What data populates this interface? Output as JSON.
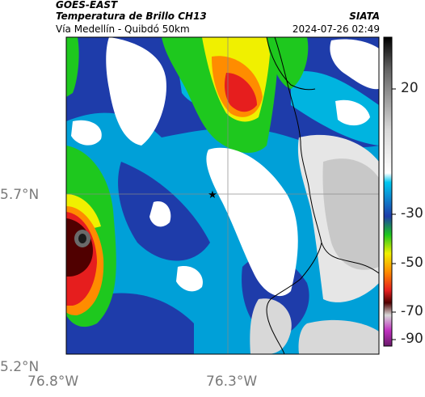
{
  "header": {
    "satellite": "GOES-EAST",
    "product": "Temperatura de Brillo CH13",
    "region": "Vía Medellín - Quibdó 50km",
    "organization": "SIATA",
    "timestamp": "2024-07-26 02:49"
  },
  "axes": {
    "latitude_labels": [
      "5.7°N",
      "5.2°N"
    ],
    "longitude_labels": [
      "76.8°W",
      "76.3°W"
    ]
  },
  "colorbar": {
    "tick_labels": [
      "20",
      "-30",
      "-50",
      "-70",
      "-90"
    ]
  },
  "marker": {
    "symbol": "★",
    "description_color": "#000000"
  },
  "colors": {
    "warm_clear": "#ffffff",
    "low_cloud": "#d0d0d0",
    "cyan": "#00b4e0",
    "blue": "#1e3caa",
    "green": "#1ec81e",
    "yellow": "#f0f000",
    "orange": "#ff8c00",
    "red": "#e61e1e",
    "dark_red": "#500000",
    "magenta": "#c030c0"
  }
}
